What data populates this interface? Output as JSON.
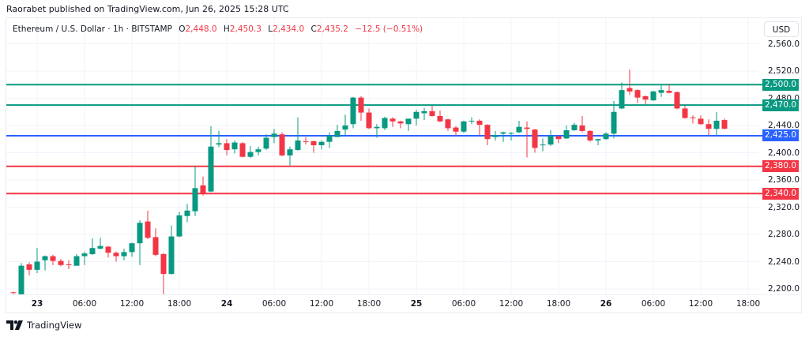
{
  "attribution": "Raorabet published on TradingView.com, Jun 26, 2025 15:28 UTC",
  "legend": {
    "symbol": "Ethereum / U.S. Dollar · 1h · BITSTAMP",
    "o_label": "O",
    "o_value": "2,448.0",
    "h_label": "H",
    "h_value": "2,450.3",
    "l_label": "L",
    "l_value": "2,434.0",
    "c_label": "C",
    "c_value": "2,435.2",
    "change": "−12.5 (−0.51%)"
  },
  "currency_button": "USD",
  "branding": {
    "logo_icon": "tradingview-logo-icon",
    "name": "TradingView"
  },
  "colors": {
    "up": "#089981",
    "down": "#f23645",
    "blue_level": "#2962ff",
    "grid": "#f0f3fa",
    "text": "#131722"
  },
  "chart_data": {
    "type": "candlestick",
    "title": "Ethereum / U.S. Dollar · 1h · BITSTAMP",
    "xlabel": "",
    "ylabel": "USD",
    "ylim": [
      2200,
      2560
    ],
    "grid": true,
    "y_ticks": [
      "2,200.0",
      "2,240.0",
      "2,280.0",
      "2,320.0",
      "2,360.0",
      "2,400.0",
      "2,440.0",
      "2,480.0",
      "2,520.0",
      "2,560.0"
    ],
    "y_tick_values": [
      2200,
      2240,
      2280,
      2320,
      2360,
      2400,
      2440,
      2480,
      2520,
      2560
    ],
    "x_ticks": [
      {
        "label": "23",
        "index": 3,
        "day": true
      },
      {
        "label": "06:00",
        "index": 9
      },
      {
        "label": "12:00",
        "index": 15
      },
      {
        "label": "18:00",
        "index": 21
      },
      {
        "label": "24",
        "index": 27,
        "day": true
      },
      {
        "label": "06:00",
        "index": 33
      },
      {
        "label": "12:00",
        "index": 39
      },
      {
        "label": "18:00",
        "index": 45
      },
      {
        "label": "25",
        "index": 51,
        "day": true
      },
      {
        "label": "06:00",
        "index": 57
      },
      {
        "label": "12:00",
        "index": 63
      },
      {
        "label": "18:00",
        "index": 69
      },
      {
        "label": "26",
        "index": 75,
        "day": true
      },
      {
        "label": "06:00",
        "index": 81
      },
      {
        "label": "12:00",
        "index": 87
      },
      {
        "label": "18:00",
        "index": 93
      }
    ],
    "levels": [
      {
        "price": 2500,
        "label": "2,500.0",
        "color": "#089981"
      },
      {
        "price": 2470,
        "label": "2,470.0",
        "color": "#089981"
      },
      {
        "price": 2425,
        "label": "2,425.0",
        "color": "#2962ff"
      },
      {
        "price": 2380,
        "label": "2,380.0",
        "color": "#f23645"
      },
      {
        "price": 2340,
        "label": "2,340.0",
        "color": "#f23645"
      }
    ],
    "ohlc_columns": [
      "time",
      "open",
      "high",
      "low",
      "close"
    ],
    "candles": [
      [
        "06-22 21:00",
        2195,
        2196,
        2192,
        2194
      ],
      [
        "06-22 22:00",
        2192,
        2238,
        2192,
        2234
      ],
      [
        "06-22 23:00",
        2236,
        2239,
        2220,
        2228
      ],
      [
        "06-23 00:00",
        2228,
        2260,
        2223,
        2240
      ],
      [
        "06-23 01:00",
        2242,
        2249,
        2227,
        2248
      ],
      [
        "06-23 02:00",
        2248,
        2250,
        2235,
        2241
      ],
      [
        "06-23 03:00",
        2241,
        2244,
        2233,
        2235
      ],
      [
        "06-23 04:00",
        2236,
        2242,
        2229,
        2235
      ],
      [
        "06-23 05:00",
        2234,
        2251,
        2234,
        2248
      ],
      [
        "06-23 06:00",
        2248,
        2255,
        2235,
        2252
      ],
      [
        "06-23 07:00",
        2251,
        2274,
        2250,
        2260
      ],
      [
        "06-23 08:00",
        2259,
        2275,
        2258,
        2263
      ],
      [
        "06-23 09:00",
        2262,
        2263,
        2246,
        2253
      ],
      [
        "06-23 10:00",
        2253,
        2255,
        2240,
        2248
      ],
      [
        "06-23 11:00",
        2248,
        2259,
        2242,
        2254
      ],
      [
        "06-23 12:00",
        2254,
        2268,
        2247,
        2267
      ],
      [
        "06-23 13:00",
        2267,
        2301,
        2235,
        2297
      ],
      [
        "06-23 14:00",
        2299,
        2315,
        2273,
        2275
      ],
      [
        "06-23 15:00",
        2276,
        2289,
        2248,
        2250
      ],
      [
        "06-23 16:00",
        2251,
        2253,
        2192,
        2222
      ],
      [
        "06-23 17:00",
        2222,
        2293,
        2221,
        2277
      ],
      [
        "06-23 18:00",
        2277,
        2313,
        2276,
        2308
      ],
      [
        "06-23 19:00",
        2307,
        2325,
        2298,
        2315
      ],
      [
        "06-23 20:00",
        2314,
        2380,
        2307,
        2348
      ],
      [
        "06-23 21:00",
        2352,
        2365,
        2337,
        2340
      ],
      [
        "06-23 22:00",
        2343,
        2439,
        2342,
        2409
      ],
      [
        "06-23 23:00",
        2412,
        2432,
        2408,
        2414
      ],
      [
        "06-24 00:00",
        2414,
        2420,
        2396,
        2404
      ],
      [
        "06-24 01:00",
        2405,
        2418,
        2399,
        2415
      ],
      [
        "06-24 02:00",
        2414,
        2416,
        2393,
        2394
      ],
      [
        "06-24 03:00",
        2394,
        2410,
        2392,
        2401
      ],
      [
        "06-24 04:00",
        2401,
        2409,
        2396,
        2405
      ],
      [
        "06-24 05:00",
        2406,
        2427,
        2404,
        2422
      ],
      [
        "06-24 06:00",
        2423,
        2435,
        2414,
        2428
      ],
      [
        "06-24 07:00",
        2427,
        2430,
        2395,
        2396
      ],
      [
        "06-24 08:00",
        2396,
        2409,
        2381,
        2405
      ],
      [
        "06-24 09:00",
        2404,
        2452,
        2403,
        2418
      ],
      [
        "06-24 10:00",
        2417,
        2423,
        2412,
        2416
      ],
      [
        "06-24 11:00",
        2417,
        2418,
        2400,
        2411
      ],
      [
        "06-24 12:00",
        2411,
        2418,
        2405,
        2416
      ],
      [
        "06-24 13:00",
        2416,
        2430,
        2407,
        2425
      ],
      [
        "06-24 14:00",
        2423,
        2441,
        2423,
        2432
      ],
      [
        "06-24 15:00",
        2434,
        2456,
        2426,
        2440
      ],
      [
        "06-24 16:00",
        2442,
        2482,
        2436,
        2481
      ],
      [
        "06-24 17:00",
        2481,
        2483,
        2447,
        2459
      ],
      [
        "06-24 18:00",
        2459,
        2465,
        2435,
        2436
      ],
      [
        "06-24 19:00",
        2436,
        2442,
        2422,
        2438
      ],
      [
        "06-24 20:00",
        2436,
        2453,
        2433,
        2451
      ],
      [
        "06-24 21:00",
        2450,
        2452,
        2438,
        2446
      ],
      [
        "06-24 22:00",
        2446,
        2447,
        2436,
        2443
      ],
      [
        "06-24 23:00",
        2442,
        2450,
        2432,
        2450
      ],
      [
        "06-25 00:00",
        2450,
        2463,
        2440,
        2460
      ],
      [
        "06-25 01:00",
        2458,
        2466,
        2448,
        2461
      ],
      [
        "06-25 02:00",
        2461,
        2469,
        2453,
        2454
      ],
      [
        "06-25 03:00",
        2454,
        2462,
        2445,
        2446
      ],
      [
        "06-25 04:00",
        2449,
        2450,
        2432,
        2436
      ],
      [
        "06-25 05:00",
        2437,
        2439,
        2425,
        2431
      ],
      [
        "06-25 06:00",
        2431,
        2447,
        2429,
        2446
      ],
      [
        "06-25 07:00",
        2446,
        2452,
        2442,
        2447
      ],
      [
        "06-25 08:00",
        2447,
        2449,
        2426,
        2441
      ],
      [
        "06-25 09:00",
        2441,
        2442,
        2411,
        2420
      ],
      [
        "06-25 10:00",
        2423,
        2432,
        2418,
        2426
      ],
      [
        "06-25 11:00",
        2428,
        2431,
        2416,
        2430
      ],
      [
        "06-25 12:00",
        2428,
        2430,
        2418,
        2429
      ],
      [
        "06-25 13:00",
        2430,
        2447,
        2429,
        2438
      ],
      [
        "06-25 14:00",
        2437,
        2446,
        2393,
        2435
      ],
      [
        "06-25 15:00",
        2434,
        2435,
        2400,
        2407
      ],
      [
        "06-25 16:00",
        2411,
        2421,
        2402,
        2412
      ],
      [
        "06-25 17:00",
        2412,
        2433,
        2410,
        2425
      ],
      [
        "06-25 18:00",
        2424,
        2425,
        2414,
        2420
      ],
      [
        "06-25 19:00",
        2421,
        2440,
        2420,
        2433
      ],
      [
        "06-25 20:00",
        2433,
        2444,
        2432,
        2441
      ],
      [
        "06-25 21:00",
        2440,
        2454,
        2430,
        2432
      ],
      [
        "06-25 22:00",
        2432,
        2433,
        2416,
        2418
      ],
      [
        "06-25 23:00",
        2418,
        2420,
        2411,
        2420
      ],
      [
        "06-26 00:00",
        2420,
        2430,
        2419,
        2428
      ],
      [
        "06-26 01:00",
        2428,
        2476,
        2421,
        2460
      ],
      [
        "06-26 02:00",
        2465,
        2503,
        2464,
        2492
      ],
      [
        "06-26 03:00",
        2495,
        2522,
        2485,
        2490
      ],
      [
        "06-26 04:00",
        2492,
        2493,
        2473,
        2481
      ],
      [
        "06-26 05:00",
        2483,
        2484,
        2471,
        2478
      ],
      [
        "06-26 06:00",
        2477,
        2491,
        2476,
        2490
      ],
      [
        "06-26 07:00",
        2488,
        2499,
        2482,
        2492
      ],
      [
        "06-26 08:00",
        2491,
        2500,
        2487,
        2488
      ],
      [
        "06-26 09:00",
        2489,
        2490,
        2464,
        2465
      ],
      [
        "06-26 10:00",
        2465,
        2469,
        2450,
        2451
      ],
      [
        "06-26 11:00",
        2452,
        2455,
        2443,
        2451
      ],
      [
        "06-26 12:00",
        2450,
        2455,
        2441,
        2442
      ],
      [
        "06-26 13:00",
        2442,
        2449,
        2426,
        2435
      ],
      [
        "06-26 14:00",
        2435,
        2460,
        2426,
        2447
      ],
      [
        "06-26 15:00",
        2448.0,
        2450.3,
        2434.0,
        2435.2
      ]
    ]
  }
}
